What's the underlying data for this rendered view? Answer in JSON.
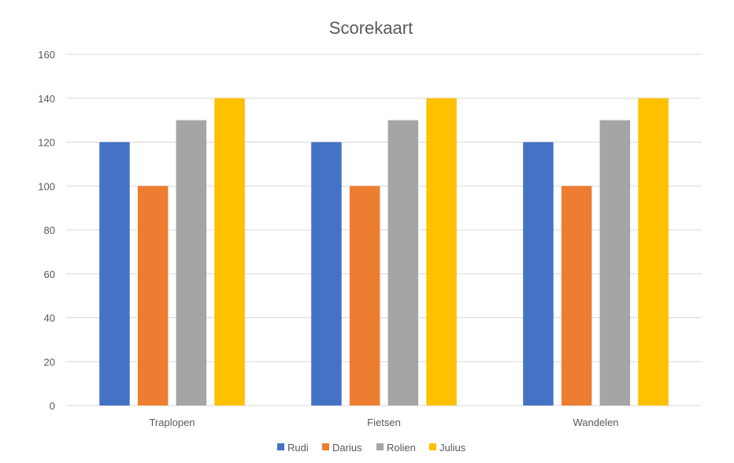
{
  "chart_data": {
    "type": "bar",
    "title": "Scorekaart",
    "categories": [
      "Traplopen",
      "Fietsen",
      "Wandelen"
    ],
    "series": [
      {
        "name": "Rudi",
        "values": [
          120,
          120,
          120
        ],
        "color": "#4472C4"
      },
      {
        "name": "Darius",
        "values": [
          100,
          100,
          100
        ],
        "color": "#ED7D31"
      },
      {
        "name": "Rolien",
        "values": [
          130,
          130,
          130
        ],
        "color": "#A5A5A5"
      },
      {
        "name": "Julius",
        "values": [
          140,
          140,
          140
        ],
        "color": "#FFC000"
      }
    ],
    "ylim": [
      0,
      160
    ],
    "yticks": [
      0,
      20,
      40,
      60,
      80,
      100,
      120,
      140,
      160
    ],
    "grid": true,
    "legend_position": "bottom"
  }
}
